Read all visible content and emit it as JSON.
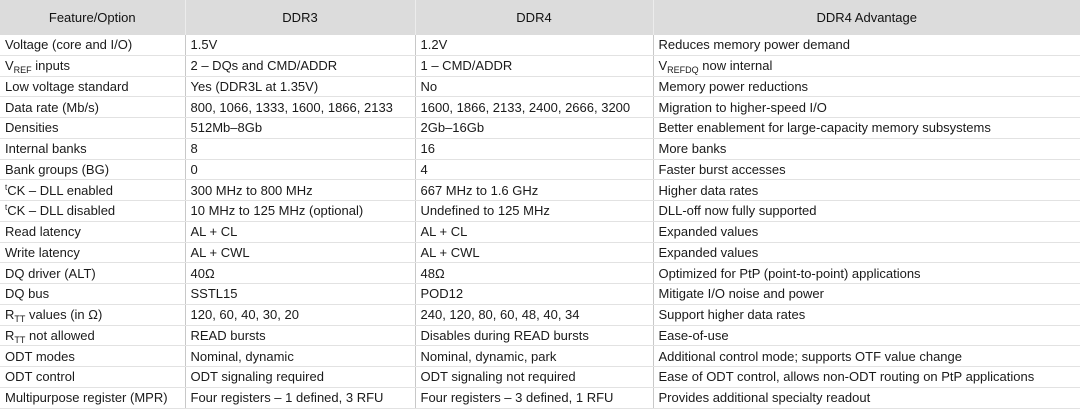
{
  "headers": [
    "Feature/Option",
    "DDR3",
    "DDR4",
    "DDR4 Advantage"
  ],
  "rows": [
    {
      "feature": {
        "text": "Voltage (core and I/O)"
      },
      "ddr3": "1.5V",
      "ddr4": "1.2V",
      "advantage": {
        "text": "Reduces memory power demand"
      }
    },
    {
      "feature": {
        "pre": "V",
        "sub": "REF",
        "text": " inputs"
      },
      "ddr3": "2 – DQs and CMD/ADDR",
      "ddr4": "1 – CMD/ADDR",
      "advantage": {
        "pre": "V",
        "sub": "REFDQ",
        "text": " now internal"
      }
    },
    {
      "feature": {
        "text": "Low voltage standard"
      },
      "ddr3": "Yes (DDR3L at 1.35V)",
      "ddr4": "No",
      "advantage": {
        "text": "Memory power reductions"
      }
    },
    {
      "feature": {
        "text": "Data rate (Mb/s)"
      },
      "ddr3": "800, 1066, 1333, 1600, 1866, 2133",
      "ddr4": "1600, 1866, 2133, 2400, 2666, 3200",
      "advantage": {
        "text": "Migration to higher-speed I/O"
      }
    },
    {
      "feature": {
        "text": "Densities"
      },
      "ddr3": "512Mb–8Gb",
      "ddr4": "2Gb–16Gb",
      "advantage": {
        "text": "Better enablement for large-capacity memory subsystems"
      }
    },
    {
      "feature": {
        "text": "Internal banks"
      },
      "ddr3": "8",
      "ddr4": "16",
      "advantage": {
        "text": "More banks"
      }
    },
    {
      "feature": {
        "text": "Bank groups (BG)"
      },
      "ddr3": "0",
      "ddr4": "4",
      "advantage": {
        "text": "Faster burst accesses"
      }
    },
    {
      "feature": {
        "sup": "t",
        "text": "CK – DLL enabled"
      },
      "ddr3": "300 MHz to 800 MHz",
      "ddr4": "667 MHz to 1.6 GHz",
      "advantage": {
        "text": "Higher data rates"
      }
    },
    {
      "feature": {
        "sup": "t",
        "text": "CK – DLL disabled"
      },
      "ddr3": "10 MHz to 125 MHz (optional)",
      "ddr4": "Undefined to 125 MHz",
      "advantage": {
        "text": "DLL-off now fully supported"
      }
    },
    {
      "feature": {
        "text": "Read latency"
      },
      "ddr3": "AL + CL",
      "ddr4": "AL + CL",
      "advantage": {
        "text": "Expanded values"
      }
    },
    {
      "feature": {
        "text": "Write latency"
      },
      "ddr3": "AL + CWL",
      "ddr4": "AL + CWL",
      "advantage": {
        "text": "Expanded values"
      }
    },
    {
      "feature": {
        "text": "DQ driver (ALT)"
      },
      "ddr3": "40Ω",
      "ddr4": "48Ω",
      "advantage": {
        "text": "Optimized for PtP (point-to-point) applications"
      }
    },
    {
      "feature": {
        "text": "DQ bus"
      },
      "ddr3": "SSTL15",
      "ddr4": "POD12",
      "advantage": {
        "text": "Mitigate I/O noise and power"
      }
    },
    {
      "feature": {
        "pre": "R",
        "sub": "TT",
        "text": " values (in Ω)"
      },
      "ddr3": "120, 60, 40, 30, 20",
      "ddr4": "240, 120, 80, 60, 48, 40, 34",
      "advantage": {
        "text": "Support higher data rates"
      }
    },
    {
      "feature": {
        "pre": "R",
        "sub": "TT",
        "text": " not allowed"
      },
      "ddr3": "READ bursts",
      "ddr4": "Disables during READ bursts",
      "advantage": {
        "text": "Ease-of-use"
      }
    },
    {
      "feature": {
        "text": "ODT modes"
      },
      "ddr3": "Nominal, dynamic",
      "ddr4": "Nominal, dynamic, park",
      "advantage": {
        "text": "Additional control mode; supports OTF value change"
      }
    },
    {
      "feature": {
        "text": "ODT control"
      },
      "ddr3": "ODT signaling required",
      "ddr4": "ODT signaling not required",
      "advantage": {
        "text": "Ease of ODT control, allows non-ODT routing on PtP applications"
      }
    },
    {
      "feature": {
        "text": "Multipurpose register (MPR)"
      },
      "ddr3": "Four registers – 1 defined, 3 RFU",
      "ddr4": "Four registers – 3 defined, 1 RFU",
      "advantage": {
        "text": "Provides additional specialty readout"
      }
    }
  ]
}
